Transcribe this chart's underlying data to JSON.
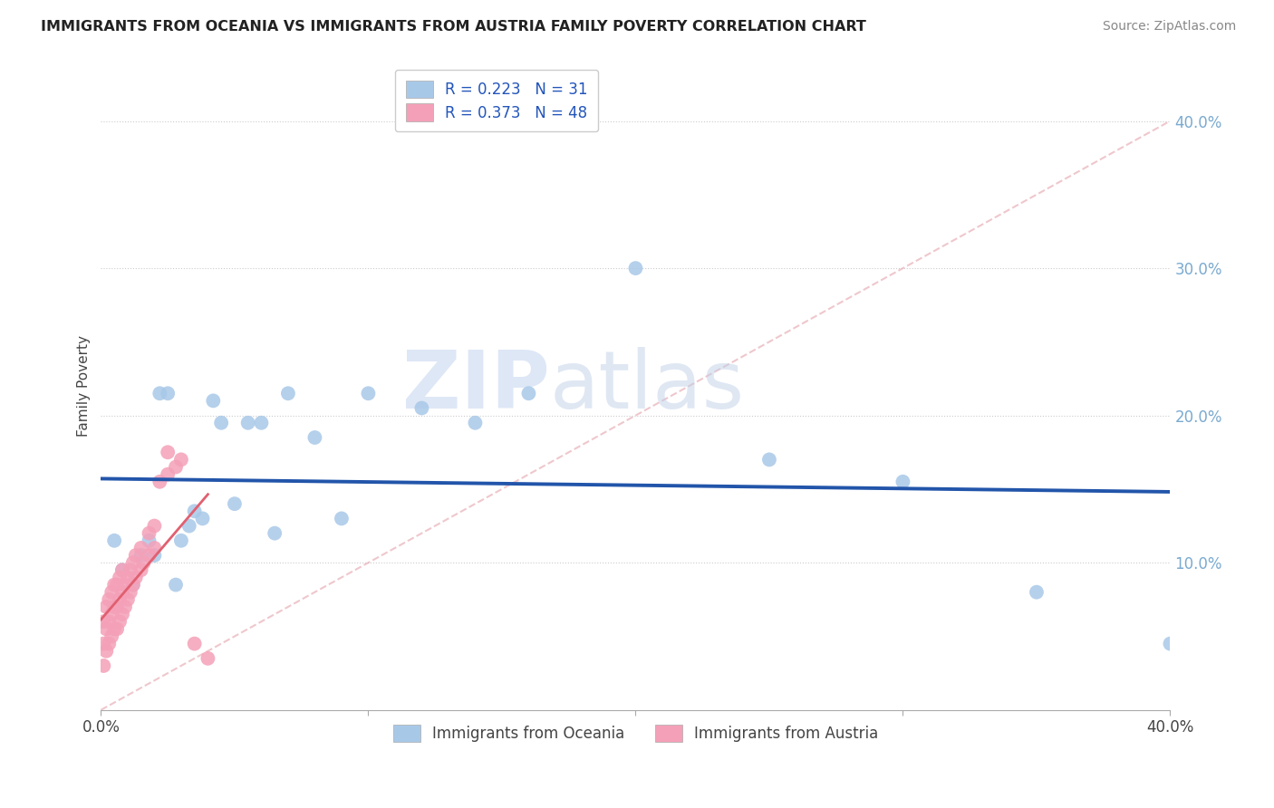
{
  "title": "IMMIGRANTS FROM OCEANIA VS IMMIGRANTS FROM AUSTRIA FAMILY POVERTY CORRELATION CHART",
  "source": "Source: ZipAtlas.com",
  "ylabel": "Family Poverty",
  "ytick_vals": [
    0.1,
    0.2,
    0.3,
    0.4
  ],
  "xlim": [
    0.0,
    0.4
  ],
  "ylim": [
    0.0,
    0.44
  ],
  "legend_label_oceania": "Immigrants from Oceania",
  "legend_label_austria": "Immigrants from Austria",
  "color_oceania": "#A8C8E8",
  "color_austria": "#F4A0B8",
  "trendline_oceania_color": "#2255AA",
  "trendline_austria_color": "#E06070",
  "oceania_x": [
    0.005,
    0.008,
    0.012,
    0.015,
    0.018,
    0.02,
    0.022,
    0.025,
    0.028,
    0.03,
    0.033,
    0.035,
    0.038,
    0.042,
    0.045,
    0.05,
    0.055,
    0.06,
    0.065,
    0.07,
    0.08,
    0.09,
    0.1,
    0.12,
    0.14,
    0.16,
    0.2,
    0.25,
    0.3,
    0.35,
    0.4
  ],
  "oceania_y": [
    0.115,
    0.095,
    0.085,
    0.105,
    0.115,
    0.105,
    0.215,
    0.215,
    0.085,
    0.115,
    0.125,
    0.135,
    0.13,
    0.21,
    0.195,
    0.14,
    0.195,
    0.195,
    0.12,
    0.215,
    0.185,
    0.13,
    0.215,
    0.205,
    0.195,
    0.215,
    0.3,
    0.17,
    0.155,
    0.08,
    0.045
  ],
  "austria_x": [
    0.001,
    0.001,
    0.001,
    0.002,
    0.002,
    0.002,
    0.003,
    0.003,
    0.003,
    0.004,
    0.004,
    0.004,
    0.005,
    0.005,
    0.005,
    0.006,
    0.006,
    0.006,
    0.007,
    0.007,
    0.007,
    0.008,
    0.008,
    0.008,
    0.009,
    0.009,
    0.01,
    0.01,
    0.011,
    0.011,
    0.012,
    0.012,
    0.013,
    0.013,
    0.015,
    0.015,
    0.016,
    0.018,
    0.018,
    0.02,
    0.02,
    0.022,
    0.025,
    0.025,
    0.028,
    0.03,
    0.035,
    0.04
  ],
  "austria_y": [
    0.03,
    0.045,
    0.06,
    0.04,
    0.055,
    0.07,
    0.045,
    0.06,
    0.075,
    0.05,
    0.065,
    0.08,
    0.055,
    0.07,
    0.085,
    0.055,
    0.07,
    0.085,
    0.06,
    0.075,
    0.09,
    0.065,
    0.08,
    0.095,
    0.07,
    0.085,
    0.075,
    0.09,
    0.08,
    0.095,
    0.085,
    0.1,
    0.09,
    0.105,
    0.095,
    0.11,
    0.1,
    0.105,
    0.12,
    0.11,
    0.125,
    0.155,
    0.16,
    0.175,
    0.165,
    0.17,
    0.045,
    0.035
  ]
}
